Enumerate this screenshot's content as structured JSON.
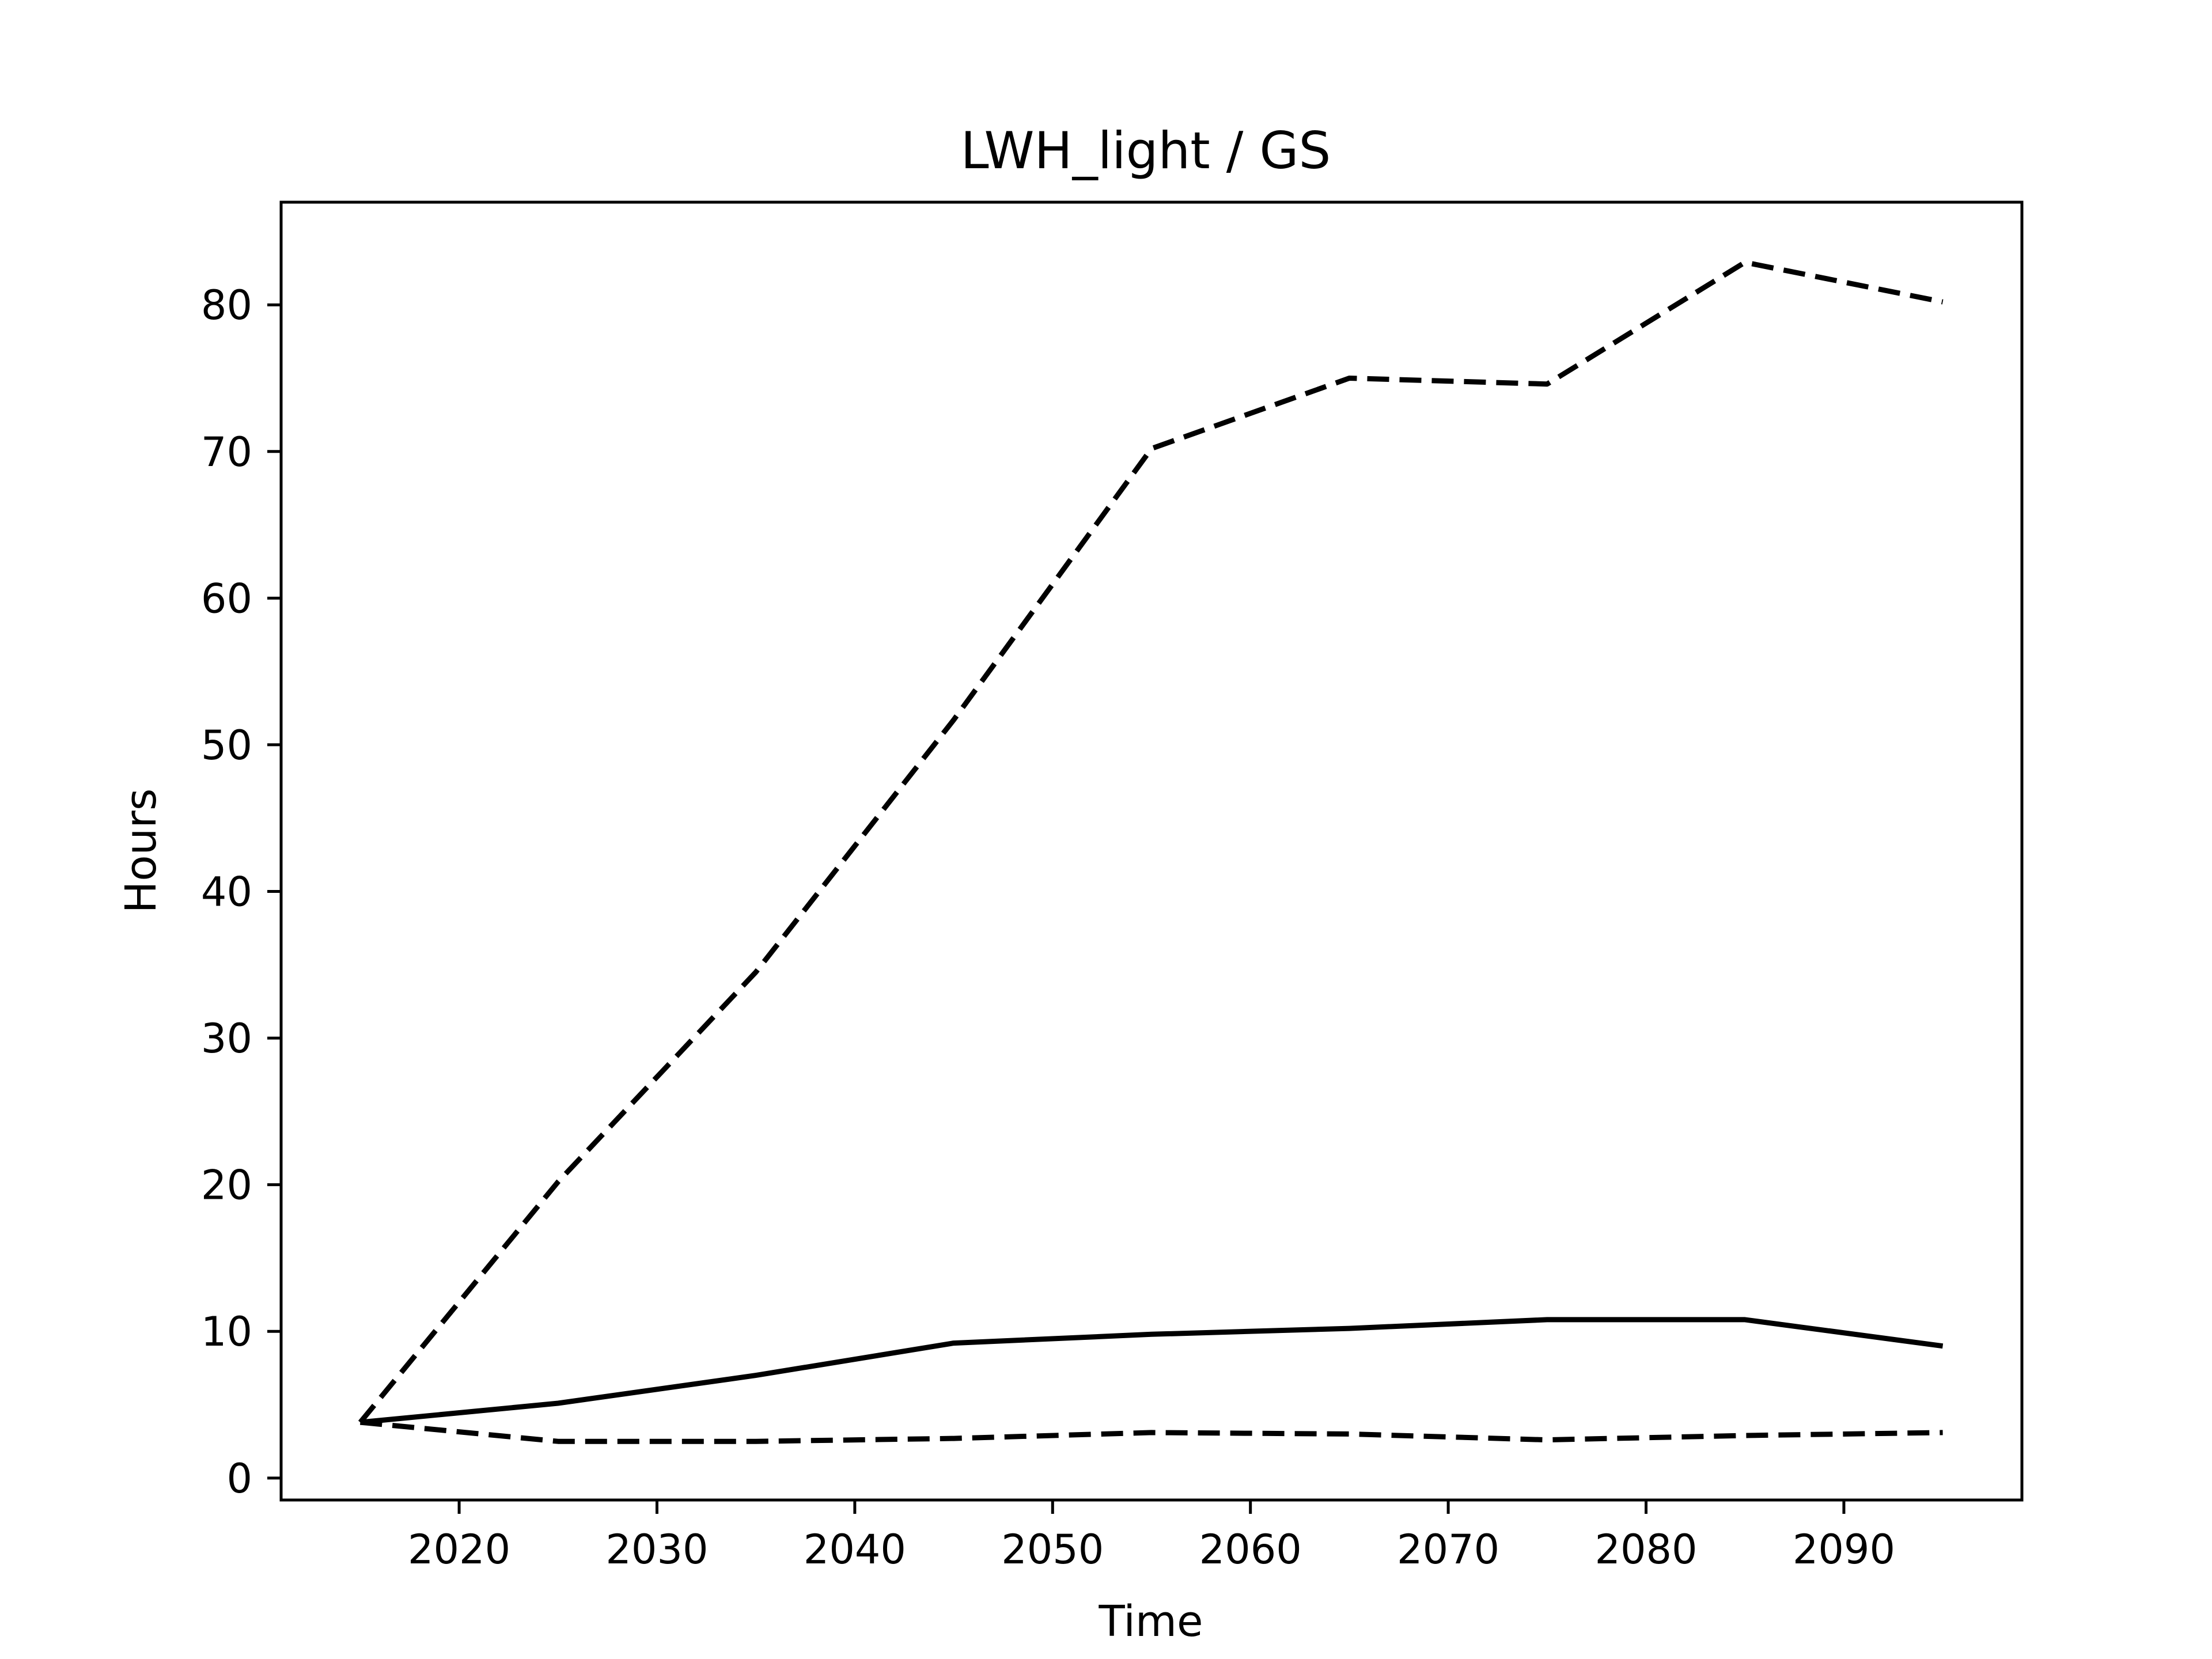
{
  "chart_data": {
    "type": "line",
    "title": "LWH_light / GS",
    "xlabel": "Time",
    "ylabel": "Hours",
    "xlim": [
      2011,
      2099
    ],
    "ylim": [
      -1.5,
      87
    ],
    "xticks": [
      2020,
      2030,
      2040,
      2050,
      2060,
      2070,
      2080,
      2090
    ],
    "yticks": [
      0,
      10,
      20,
      30,
      40,
      50,
      60,
      70,
      80
    ],
    "grid": false,
    "legend": "none",
    "x": [
      2015,
      2025,
      2035,
      2045,
      2055,
      2065,
      2075,
      2085,
      2095
    ],
    "series": [
      {
        "style": "solid",
        "color": "#000000",
        "values": [
          3.8,
          5.1,
          7.0,
          9.2,
          9.8,
          10.2,
          10.8,
          10.8,
          9.0
        ]
      },
      {
        "style": "dashed",
        "color": "#000000",
        "values": [
          3.8,
          20.2,
          34.5,
          51.7,
          70.2,
          75.0,
          74.6,
          82.9,
          80.2
        ]
      },
      {
        "style": "dashed",
        "color": "#000000",
        "values": [
          3.8,
          2.5,
          2.5,
          2.7,
          3.1,
          3.0,
          2.6,
          2.9,
          3.1
        ]
      }
    ]
  }
}
